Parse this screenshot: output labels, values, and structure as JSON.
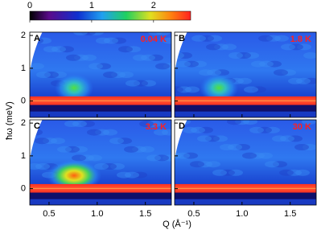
{
  "chart_data": {
    "type": "heatmap",
    "ylabel": "ħω (meV)",
    "xlabel": "Q (Å⁻¹)",
    "panels": [
      {
        "label": "A",
        "temperature": "0.04 K"
      },
      {
        "label": "B",
        "temperature": "1.8 K"
      },
      {
        "label": "C",
        "temperature": "3.3 K"
      },
      {
        "label": "D",
        "temperature": "30 K"
      }
    ],
    "xlim": [
      0.3,
      1.77
    ],
    "xticks": [
      0.5,
      {
        "value": 1,
        "label": "1.0"
      },
      1.5
    ],
    "ylim": [
      -0.5,
      2.1
    ],
    "yticks": [
      0,
      1,
      2
    ],
    "colorbar": {
      "lim": [
        0,
        2.6
      ],
      "ticks": [
        0,
        1,
        2
      ]
    }
  }
}
